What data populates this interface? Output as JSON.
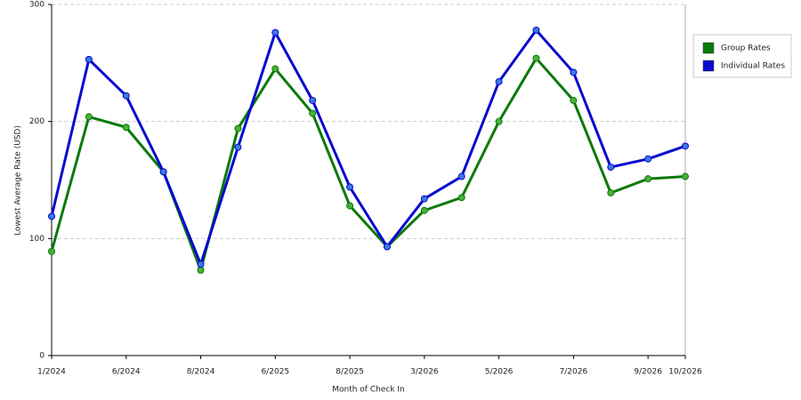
{
  "chart_data": {
    "type": "line",
    "x_label": "Month of Check In",
    "y_label": "Lowest Average Rate (USD)",
    "categories": [
      "1/2024",
      null,
      "6/2024",
      null,
      "8/2024",
      null,
      "6/2025",
      null,
      "8/2025",
      null,
      "3/2026",
      null,
      "5/2026",
      null,
      "7/2026",
      null,
      "9/2026",
      "10/2026"
    ],
    "series": [
      {
        "name": "Group Rates",
        "color": "#0a7a0a",
        "marker_color": "#4caf3a",
        "values": [
          89,
          204,
          195,
          157,
          73,
          194,
          245,
          207,
          128,
          93,
          124,
          135,
          200,
          254,
          218,
          139,
          151,
          153
        ]
      },
      {
        "name": "Individual Rates",
        "color": "#0a0ad0",
        "marker_color": "#3a7ae0",
        "values": [
          119,
          253,
          222,
          157,
          78,
          178,
          276,
          218,
          144,
          93,
          134,
          153,
          234,
          278,
          242,
          161,
          168,
          179
        ]
      }
    ],
    "ylim": [
      0,
      300
    ],
    "yticks": [
      0,
      100,
      200,
      300
    ],
    "grid": true,
    "legend": "right"
  }
}
